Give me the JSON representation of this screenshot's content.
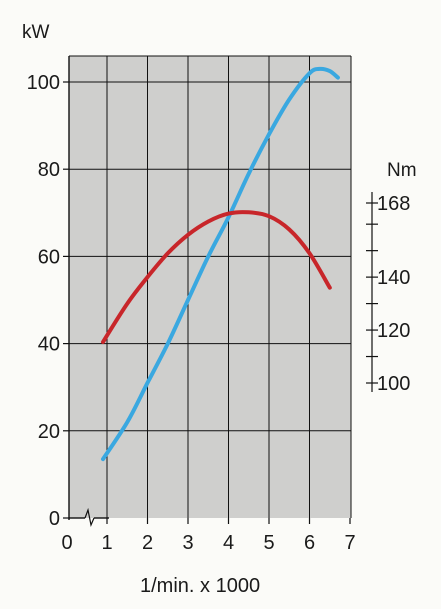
{
  "chart_data": {
    "type": "line",
    "title": "",
    "xlabel": "1/min. x 1000",
    "ylabel_left": "kW",
    "ylabel_right": "Nm",
    "grid": true,
    "xlim": [
      0,
      7
    ],
    "ylim_left": [
      0,
      105
    ],
    "right_axis_range": [
      100,
      168
    ],
    "x_ticks": [
      0,
      1,
      2,
      3,
      4,
      5,
      6,
      7
    ],
    "x_tick_labels": [
      "0",
      "1",
      "2",
      "3",
      "4",
      "5",
      "6",
      "7"
    ],
    "y_ticks_left": [
      0,
      20,
      40,
      60,
      80,
      100
    ],
    "y_tick_labels_left": [
      "0",
      "20",
      "40",
      "60",
      "80",
      "100"
    ],
    "y_ticks_right": [
      100,
      110,
      120,
      130,
      140,
      150,
      160,
      168
    ],
    "y_tick_labels_right": [
      "100",
      "120",
      "140",
      "168"
    ],
    "y_tick_labeled_values_right": [
      100,
      120,
      140,
      168
    ],
    "series": [
      {
        "axis": "left",
        "color": "#3aa8e0",
        "x": [
          0.9,
          1.5,
          2.0,
          2.5,
          3.0,
          3.5,
          4.0,
          4.5,
          5.0,
          5.5,
          6.0,
          6.25,
          6.5,
          6.7
        ],
        "y": [
          13.5,
          22,
          31,
          40,
          50,
          60,
          69,
          79,
          88,
          96,
          102,
          103,
          102.5,
          101
        ]
      },
      {
        "axis": "right",
        "color": "#c8262a",
        "x": [
          0.9,
          1.5,
          2.0,
          2.5,
          3.0,
          3.5,
          4.0,
          4.5,
          5.0,
          5.5,
          6.0,
          6.5
        ],
        "y": [
          115.5,
          130,
          140,
          149,
          156,
          161,
          164,
          164.5,
          163,
          158,
          149,
          136
        ]
      }
    ]
  }
}
